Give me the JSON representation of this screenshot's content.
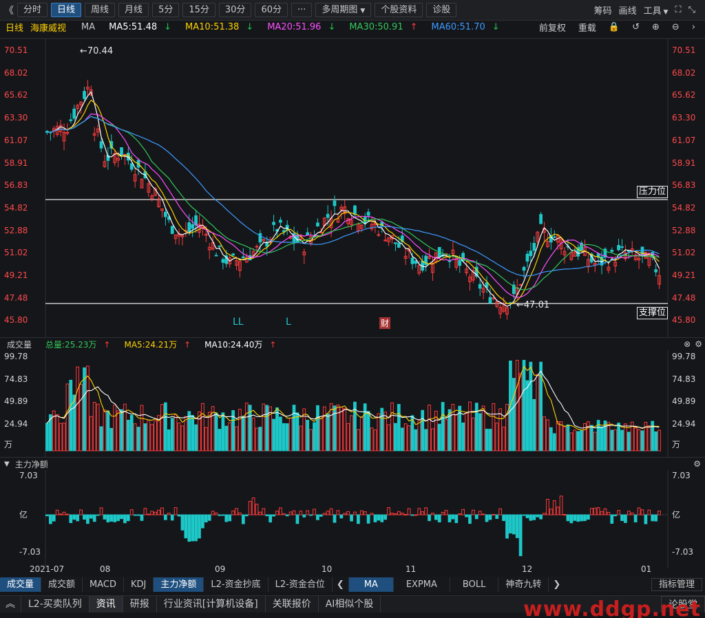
{
  "toolbar": {
    "back": "《",
    "tabs": [
      "分时",
      "日线",
      "周线",
      "月线",
      "5分",
      "15分",
      "30分",
      "60分",
      "···",
      "多周期图",
      "个股资料",
      "诊股"
    ],
    "active": "日线",
    "right": [
      "筹码",
      "画线",
      "工具"
    ]
  },
  "ma_bar": {
    "period": "日线",
    "stock": "海康威视",
    "ma_label": "MA",
    "ma5": "MA5:51.48",
    "ma10": "MA10:51.38",
    "ma20": "MA20:51.96",
    "ma30": "MA30:50.91",
    "ma60": "MA60:51.70",
    "right": [
      "前复权",
      "重载"
    ]
  },
  "colors": {
    "ma5": "#ffd200",
    "ma10": "#ffffff",
    "ma20": "#ff50ff",
    "ma30": "#32c85a",
    "ma60": "#3c9bff",
    "up": "#ff3c3c",
    "down": "#1ec8c8"
  },
  "price_axis": [
    "70.51",
    "68.02",
    "65.62",
    "63.30",
    "61.07",
    "58.91",
    "56.83",
    "54.82",
    "52.88",
    "51.02",
    "49.21",
    "47.48",
    "45.80"
  ],
  "annotations": {
    "high": "←70.44",
    "low": "←47.01",
    "resistance": "压力位",
    "support": "支撑位",
    "marks": [
      "LL",
      "L"
    ],
    "cai": "财"
  },
  "volume": {
    "title": "成交量",
    "total": "总量:25.23万",
    "ma5": "MA5:24.21万",
    "ma10": "MA10:24.40万",
    "axis": [
      "99.78",
      "74.83",
      "49.89",
      "24.94",
      "万"
    ]
  },
  "flow": {
    "title": "主力净额",
    "axis": [
      "7.03",
      "亿",
      "-7.03"
    ]
  },
  "dates": [
    "2021-07",
    "08",
    "09",
    "10",
    "11",
    "12",
    "01"
  ],
  "bottom_tabs": [
    "成交量",
    "成交额",
    "MACD",
    "KDJ",
    "主力净额",
    "L2-资金抄底",
    "L2-资金合位",
    "MA",
    "EXPMA",
    "BOLL",
    "神奇九转",
    "指标管理"
  ],
  "nav": [
    "L2-买卖队列",
    "资讯",
    "研报",
    "行业资讯[计算机设备]",
    "关联报价",
    "AI相似个股",
    "论股堂"
  ],
  "watermark": "www.ddgp.net"
}
